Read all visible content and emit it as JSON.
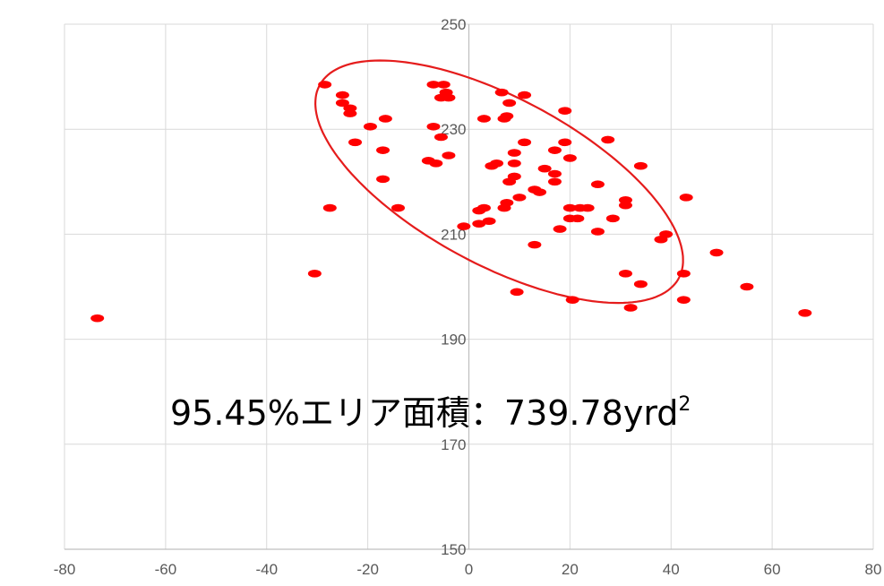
{
  "chart_data": {
    "type": "scatter",
    "title": "",
    "xlabel": "",
    "ylabel": "",
    "xlim": [
      -80,
      80
    ],
    "ylim": [
      150,
      250
    ],
    "x_ticks": [
      -80,
      -60,
      -40,
      -20,
      0,
      20,
      40,
      60,
      80
    ],
    "y_ticks": [
      150,
      170,
      190,
      210,
      230,
      250
    ],
    "x_tick_labels": [
      "-80",
      "-60",
      "-40",
      "-20",
      "0",
      "20",
      "40",
      "60",
      "80"
    ],
    "y_tick_labels": [
      "150",
      "170",
      "190",
      "210",
      "230",
      "250"
    ],
    "grid": true,
    "marker_color": "#ff0000",
    "ellipse_color": "#e51c1c",
    "ellipse": {
      "center": [
        6,
        220
      ],
      "semi_major": 40,
      "semi_minor": 16,
      "angle_deg": -27
    },
    "annotation": {
      "text": "95.45%エリア面積：739.78yrd",
      "superscript": "2"
    },
    "points": [
      [
        -73.5,
        194
      ],
      [
        -30.5,
        202.5
      ],
      [
        -27.5,
        215
      ],
      [
        -28.5,
        238.5
      ],
      [
        -25,
        236.5
      ],
      [
        -25,
        235
      ],
      [
        -23.5,
        234
      ],
      [
        -23.5,
        233
      ],
      [
        -22.5,
        227.5
      ],
      [
        -19.5,
        230.5
      ],
      [
        -16.5,
        232
      ],
      [
        -17,
        226
      ],
      [
        -17,
        220.5
      ],
      [
        -14,
        215
      ],
      [
        -8,
        224
      ],
      [
        -7,
        238.5
      ],
      [
        -7,
        230.5
      ],
      [
        -6.5,
        223.5
      ],
      [
        -5.5,
        228.5
      ],
      [
        -5.5,
        236
      ],
      [
        -5,
        238.5
      ],
      [
        -4.5,
        237
      ],
      [
        -4,
        236
      ],
      [
        -4,
        225
      ],
      [
        -1,
        211.5
      ],
      [
        2,
        214.5
      ],
      [
        2,
        212
      ],
      [
        3,
        215
      ],
      [
        3,
        232
      ],
      [
        4,
        212.5
      ],
      [
        4.5,
        223
      ],
      [
        5.5,
        223.5
      ],
      [
        6.5,
        237
      ],
      [
        7,
        232
      ],
      [
        7,
        215
      ],
      [
        7.5,
        216
      ],
      [
        7.5,
        232.5
      ],
      [
        8,
        235
      ],
      [
        8,
        220
      ],
      [
        9,
        221
      ],
      [
        9,
        225.5
      ],
      [
        9,
        223.5
      ],
      [
        9.5,
        199
      ],
      [
        10,
        217
      ],
      [
        11,
        236.5
      ],
      [
        11,
        227.5
      ],
      [
        13,
        208
      ],
      [
        13,
        218.5
      ],
      [
        14,
        218
      ],
      [
        15,
        222.5
      ],
      [
        17,
        221.5
      ],
      [
        17,
        220
      ],
      [
        17,
        226
      ],
      [
        18,
        211
      ],
      [
        19,
        227.5
      ],
      [
        19,
        233.5
      ],
      [
        20,
        215
      ],
      [
        20,
        224.5
      ],
      [
        20,
        213
      ],
      [
        20.5,
        197.5
      ],
      [
        21.5,
        213
      ],
      [
        22,
        215
      ],
      [
        23.5,
        215
      ],
      [
        25.5,
        219.5
      ],
      [
        25.5,
        210.5
      ],
      [
        27.5,
        228
      ],
      [
        28.5,
        213
      ],
      [
        31,
        216.5
      ],
      [
        31,
        215.5
      ],
      [
        31,
        202.5
      ],
      [
        32,
        196
      ],
      [
        34,
        200.5
      ],
      [
        34,
        223
      ],
      [
        38,
        209
      ],
      [
        39,
        210
      ],
      [
        42.5,
        197.5
      ],
      [
        42.5,
        202.5
      ],
      [
        43,
        217
      ],
      [
        49,
        206.5
      ],
      [
        55,
        200
      ],
      [
        66.5,
        195
      ]
    ]
  }
}
